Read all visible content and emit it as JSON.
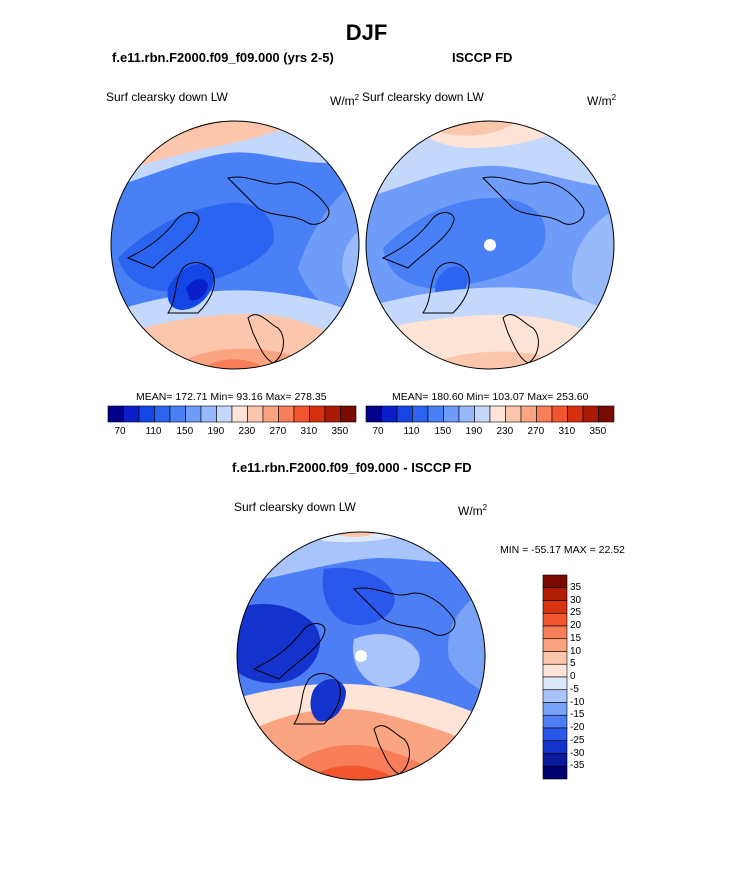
{
  "figure_title": "DJF",
  "panels": [
    {
      "title": "f.e11.rbn.F2000.f09_f09.000 (yrs 2-5)",
      "left_label": "Surf clearsky down LW",
      "units_base": "W/m",
      "units_exp": "2",
      "stats": "MEAN= 172.71  Min=  93.16  Max= 278.35"
    },
    {
      "title": "ISCCP FD",
      "left_label": "Surf clearsky down LW",
      "units_base": "W/m",
      "units_exp": "2",
      "stats": "MEAN= 180.60  Min= 103.07  Max= 253.60"
    },
    {
      "title": "f.e11.rbn.F2000.f09_f09.000 - ISCCP FD",
      "left_label": "Surf clearsky down LW",
      "units_base": "W/m",
      "units_exp": "2",
      "stats": "MIN = -55.17 MAX =  22.52"
    }
  ],
  "chart_data": [
    {
      "type": "heatmap",
      "projection": "north-polar-stereographic",
      "title": "f.e11.rbn.F2000.f09_f09.000 (yrs 2-5)",
      "variable": "Surf clearsky down LW",
      "units": "W/m2",
      "mean": 172.71,
      "min": 93.16,
      "max": 278.35,
      "levels": [
        70,
        90,
        110,
        130,
        150,
        170,
        190,
        210,
        230,
        250,
        270,
        290,
        310,
        330,
        350
      ],
      "colorbar_tick_labels": [
        "70",
        "110",
        "150",
        "190",
        "230",
        "270",
        "310",
        "350"
      ]
    },
    {
      "type": "heatmap",
      "projection": "north-polar-stereographic",
      "title": "ISCCP FD",
      "variable": "Surf clearsky down LW",
      "units": "W/m2",
      "mean": 180.6,
      "min": 103.07,
      "max": 253.6,
      "levels": [
        70,
        90,
        110,
        130,
        150,
        170,
        190,
        210,
        230,
        250,
        270,
        290,
        310,
        330,
        350
      ],
      "colorbar_tick_labels": [
        "70",
        "110",
        "150",
        "190",
        "230",
        "270",
        "310",
        "350"
      ]
    },
    {
      "type": "heatmap",
      "projection": "north-polar-stereographic",
      "title": "f.e11.rbn.F2000.f09_f09.000 - ISCCP FD",
      "variable": "Surf clearsky down LW",
      "units": "W/m2",
      "min": -55.17,
      "max": 22.52,
      "levels": [
        -35,
        -30,
        -25,
        -20,
        -15,
        -10,
        -5,
        0,
        5,
        10,
        15,
        20,
        25,
        30,
        35
      ],
      "colorbar_tick_labels": [
        "35",
        "30",
        "25",
        "20",
        "15",
        "10",
        "5",
        "0",
        "-5",
        "-10",
        "-15",
        "-20",
        "-25",
        "-30",
        "-35"
      ]
    }
  ],
  "colors": {
    "seq_colorbar": [
      "#00008a",
      "#0a1ecc",
      "#1446e6",
      "#2a64f0",
      "#4a80f5",
      "#6e9cf8",
      "#98bafa",
      "#c4d8fc",
      "#fde4d6",
      "#fcc6ac",
      "#faa482",
      "#f77e58",
      "#f2562e",
      "#d6300e",
      "#ab1a04",
      "#7a0a00"
    ],
    "diff_colorbar_top_to_bottom": [
      "#7a0a00",
      "#b01c04",
      "#d93412",
      "#f2562e",
      "#f77e58",
      "#faa482",
      "#fcc6ac",
      "#fde4d6",
      "#dde9fc",
      "#a8c4fa",
      "#7aa2f6",
      "#4e7ef3",
      "#2a58ec",
      "#1432cc",
      "#0a1a9c",
      "#00006e"
    ]
  }
}
